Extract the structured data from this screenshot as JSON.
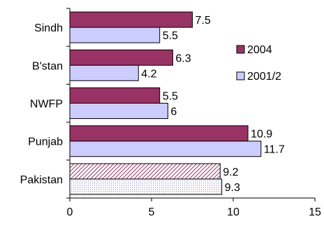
{
  "chart_data": {
    "type": "bar",
    "orientation": "horizontal",
    "title": "",
    "xlabel": "",
    "ylabel": "",
    "categories": [
      "Sindh",
      "B'stan",
      "NWFP",
      "Punjab",
      "Pakistan"
    ],
    "series": [
      {
        "name": "2004",
        "values": [
          7.5,
          6.3,
          5.5,
          10.9,
          9.2
        ],
        "color": "#993366"
      },
      {
        "name": "2001/2",
        "values": [
          5.5,
          4.2,
          6,
          11.7,
          9.3
        ],
        "color": "#ccccff"
      }
    ],
    "highlight_category": "Pakistan",
    "highlight_fill": "hatched",
    "xlim": [
      0,
      15
    ],
    "xticks": [
      0,
      5,
      10,
      15
    ],
    "grid": false,
    "legend_position": "right"
  }
}
